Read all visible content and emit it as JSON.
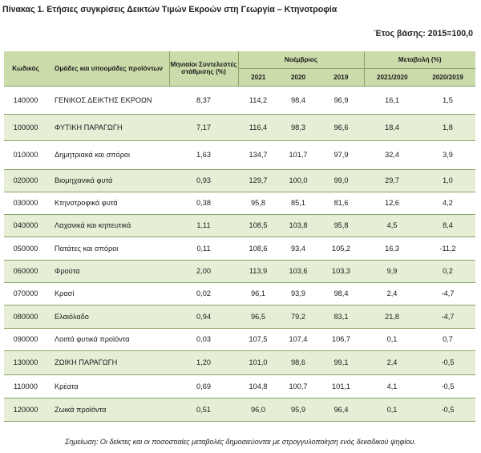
{
  "title": "Πίνακας 1. Ετήσιες συγκρίσεις Δεικτών Τιμών Εκροών στη Γεωργία – Κτηνοτροφία",
  "base_year": "Έτος βάσης: 2015=100,0",
  "headers": {
    "code": "Κωδικός",
    "groups": "Ομάδες και υποομάδες προϊόντων",
    "weights": "Μηνιαίοι Συντελεστές στάθμισης (%)",
    "november": "Νοέμβριος",
    "change": "Μεταβολή (%)",
    "y2021": "2021",
    "y2020": "2020",
    "y2019": "2019",
    "ch1": "2021/2020",
    "ch2": "2020/2019"
  },
  "rows": [
    {
      "code": "140000",
      "name": "ΓΕΝΙΚΟΣ ΔΕΙΚΤΗΣ ΕΚΡΟΩΝ",
      "weight": "8,37",
      "v2021": "114,2",
      "v2020": "98,4",
      "v2019": "96,9",
      "ch1": "16,1",
      "ch2": "1,5"
    },
    {
      "code": "100000",
      "name": "ΦΥΤΙΚΗ ΠΑΡΑΓΩΓΗ",
      "weight": "7,17",
      "v2021": "116,4",
      "v2020": "98,3",
      "v2019": "96,6",
      "ch1": "18,4",
      "ch2": "1,8"
    },
    {
      "code": "010000",
      "name": "Δημητριακά και σπόροι",
      "weight": "1,63",
      "v2021": "134,7",
      "v2020": "101,7",
      "v2019": "97,9",
      "ch1": "32,4",
      "ch2": "3,9"
    },
    {
      "code": "020000",
      "name": "Βιομηχανικά φυτά",
      "weight": "0,93",
      "v2021": "129,7",
      "v2020": "100,0",
      "v2019": "99,0",
      "ch1": "29,7",
      "ch2": "1,0"
    },
    {
      "code": "030000",
      "name": "Κτηνοτροφικά φυτά",
      "weight": "0,38",
      "v2021": "95,8",
      "v2020": "85,1",
      "v2019": "81,6",
      "ch1": "12,6",
      "ch2": "4,2"
    },
    {
      "code": "040000",
      "name": "Λαχανικά και κηπευτικά",
      "weight": "1,11",
      "v2021": "108,5",
      "v2020": "103,8",
      "v2019": "95,8",
      "ch1": "4,5",
      "ch2": "8,4"
    },
    {
      "code": "050000",
      "name": "Πατάτες και σπόροι",
      "weight": "0,11",
      "v2021": "108,6",
      "v2020": "93,4",
      "v2019": "105,2",
      "ch1": "16,3",
      "ch2": "-11,2"
    },
    {
      "code": "060000",
      "name": "Φρούτα",
      "weight": "2,00",
      "v2021": "113,9",
      "v2020": "103,6",
      "v2019": "103,3",
      "ch1": "9,9",
      "ch2": "0,2"
    },
    {
      "code": "070000",
      "name": "Κρασί",
      "weight": "0,02",
      "v2021": "96,1",
      "v2020": "93,9",
      "v2019": "98,4",
      "ch1": "2,4",
      "ch2": "-4,7"
    },
    {
      "code": "080000",
      "name": "Ελαιόλαδο",
      "weight": "0,94",
      "v2021": "96,5",
      "v2020": "79,2",
      "v2019": "83,1",
      "ch1": "21,8",
      "ch2": "-4,7"
    },
    {
      "code": "090000",
      "name": "Λοιπά φυτικά προϊόντα",
      "weight": "0,03",
      "v2021": "107,5",
      "v2020": "107,4",
      "v2019": "106,7",
      "ch1": "0,1",
      "ch2": "0,7"
    },
    {
      "code": "130000",
      "name": "ΖΩΙΚΗ ΠΑΡΑΓΩΓΗ",
      "weight": "1,20",
      "v2021": "101,0",
      "v2020": "98,6",
      "v2019": "99,1",
      "ch1": "2,4",
      "ch2": "-0,5"
    },
    {
      "code": "110000",
      "name": "Κρέατα",
      "weight": "0,69",
      "v2021": "104,8",
      "v2020": "100,7",
      "v2019": "101,1",
      "ch1": "4,1",
      "ch2": "-0,5"
    },
    {
      "code": "120000",
      "name": "Ζωικά προϊόντα",
      "weight": "0,51",
      "v2021": "96,0",
      "v2020": "95,9",
      "v2019": "96,4",
      "ch1": "0,1",
      "ch2": "-0,5"
    }
  ],
  "note": "Σημείωση: Οι δείκτες και οι ποσοστιαίες μεταβολές δημοσιεύονται με στρογγυλοποίηση ενός δεκαδικού ψηφίου.",
  "colors": {
    "header_bg": "#cbdcaa",
    "stripe_bg": "#e6efd6",
    "rule": "#8aa366"
  }
}
